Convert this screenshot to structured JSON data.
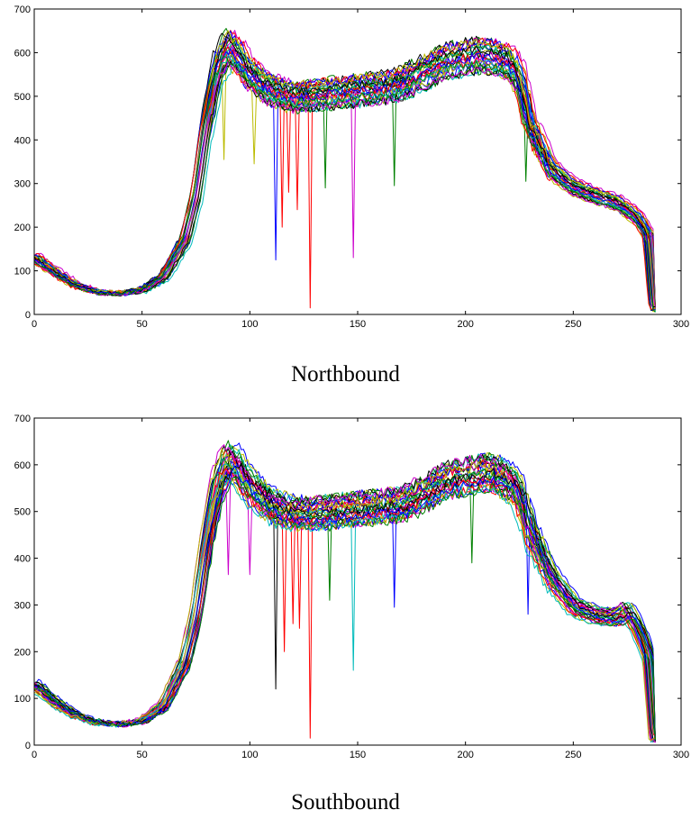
{
  "chart_data": [
    {
      "type": "line",
      "caption": "Northbound",
      "xlim": [
        0,
        300
      ],
      "ylim": [
        0,
        700
      ],
      "xticks": [
        0,
        50,
        100,
        150,
        200,
        250,
        300
      ],
      "yticks": [
        0,
        100,
        200,
        300,
        400,
        500,
        600,
        700
      ],
      "x_range_of_series": [
        0,
        288
      ],
      "n_series": 30,
      "mean_profile": {
        "x": [
          0,
          10,
          20,
          30,
          40,
          50,
          60,
          70,
          75,
          80,
          85,
          90,
          95,
          100,
          110,
          120,
          130,
          140,
          150,
          160,
          170,
          180,
          190,
          200,
          205,
          210,
          220,
          225,
          230,
          240,
          250,
          260,
          270,
          280,
          285,
          288
        ],
        "y": [
          130,
          95,
          65,
          50,
          48,
          55,
          85,
          170,
          270,
          440,
          560,
          610,
          585,
          545,
          510,
          495,
          500,
          505,
          510,
          515,
          525,
          550,
          575,
          585,
          590,
          590,
          575,
          540,
          430,
          330,
          290,
          270,
          255,
          220,
          180,
          10
        ]
      },
      "highlighted_series": [
        {
          "color": "#ff0000",
          "spikes": [
            [
              115,
              200
            ],
            [
              118,
              280
            ],
            [
              122,
              240
            ],
            [
              128,
              15
            ]
          ]
        },
        {
          "color": "#0000ff",
          "spikes": [
            [
              112,
              125
            ]
          ]
        },
        {
          "color": "#cc00cc",
          "spikes": [
            [
              148,
              130
            ]
          ]
        },
        {
          "color": "#008000",
          "spikes": [
            [
              135,
              290
            ],
            [
              167,
              295
            ],
            [
              228,
              305
            ]
          ]
        },
        {
          "color": "#bbbb00",
          "spikes": [
            [
              88,
              355
            ],
            [
              102,
              345
            ]
          ]
        }
      ],
      "grid": false
    },
    {
      "type": "line",
      "caption": "Southbound",
      "xlim": [
        0,
        300
      ],
      "ylim": [
        0,
        700
      ],
      "xticks": [
        0,
        50,
        100,
        150,
        200,
        250,
        300
      ],
      "yticks": [
        0,
        100,
        200,
        300,
        400,
        500,
        600,
        700
      ],
      "x_range_of_series": [
        0,
        288
      ],
      "n_series": 30,
      "mean_profile": {
        "x": [
          0,
          10,
          20,
          30,
          40,
          50,
          60,
          70,
          75,
          80,
          85,
          90,
          95,
          100,
          110,
          120,
          130,
          140,
          150,
          160,
          170,
          180,
          190,
          200,
          205,
          210,
          220,
          225,
          230,
          240,
          250,
          260,
          270,
          275,
          280,
          285,
          288
        ],
        "y": [
          130,
          90,
          62,
          48,
          45,
          52,
          85,
          180,
          280,
          440,
          560,
          615,
          590,
          555,
          515,
          500,
          500,
          505,
          510,
          515,
          520,
          540,
          570,
          580,
          585,
          590,
          570,
          540,
          460,
          360,
          300,
          280,
          275,
          290,
          250,
          190,
          10
        ]
      },
      "highlighted_series": [
        {
          "color": "#ff0000",
          "spikes": [
            [
              116,
              200
            ],
            [
              120,
              260
            ],
            [
              123,
              250
            ],
            [
              128,
              15
            ]
          ]
        },
        {
          "color": "#000000",
          "spikes": [
            [
              112,
              120
            ]
          ]
        },
        {
          "color": "#00bbbb",
          "spikes": [
            [
              148,
              160
            ]
          ]
        },
        {
          "color": "#0000ff",
          "spikes": [
            [
              167,
              295
            ],
            [
              229,
              280
            ]
          ]
        },
        {
          "color": "#cc00cc",
          "spikes": [
            [
              90,
              365
            ],
            [
              100,
              365
            ]
          ]
        },
        {
          "color": "#008000",
          "spikes": [
            [
              137,
              310
            ],
            [
              203,
              390
            ]
          ]
        }
      ],
      "grid": false
    }
  ],
  "palette": [
    "#0000ff",
    "#008000",
    "#ff0000",
    "#00bbbb",
    "#cc00cc",
    "#bbbb00",
    "#000000"
  ]
}
